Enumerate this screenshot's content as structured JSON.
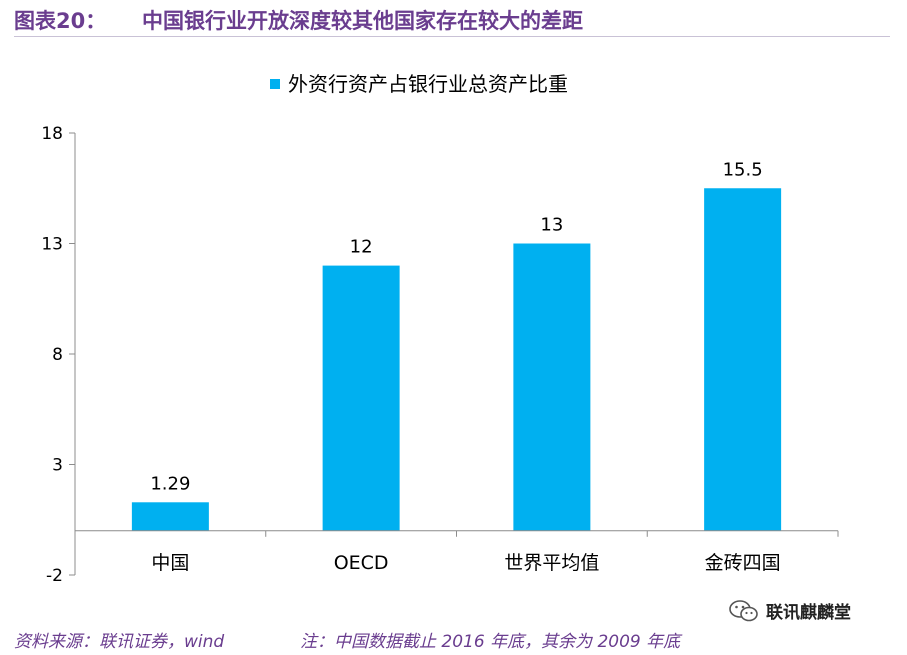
{
  "header": {
    "label": "图表20：",
    "title": "中国银行业开放深度较其他国家存在较大的差距"
  },
  "chart_data": {
    "type": "bar",
    "categories": [
      "中国",
      "OECD",
      "世界平均值",
      "金砖四国"
    ],
    "series": [
      {
        "name": "外资行资产占银行业总资产比重",
        "values": [
          1.29,
          12,
          13,
          15.5
        ],
        "labels": [
          "1.29",
          "12",
          "13",
          "15.5"
        ]
      }
    ],
    "ylim": [
      -2,
      18
    ],
    "yticks": [
      -2,
      3,
      8,
      13,
      18
    ],
    "xaxis_at": 0,
    "legend_position": "top-center",
    "grid": false,
    "bar_color": "#00b0f0"
  },
  "footer": {
    "source": "资料来源：联讯证券，wind",
    "note": "注：中国数据截止 2016 年底，其余为 2009 年底"
  },
  "watermark": {
    "text": "联讯麒麟堂",
    "icon": "wechat-icon"
  }
}
